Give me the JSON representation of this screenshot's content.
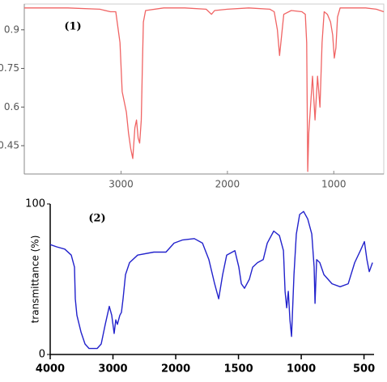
{
  "chart_data": [
    {
      "type": "line",
      "annotation": "(1)",
      "color": "#f06464",
      "x": [
        3910,
        3500,
        3200,
        3100,
        3050,
        3010,
        2990,
        2970,
        2950,
        2930,
        2910,
        2890,
        2870,
        2855,
        2840,
        2825,
        2810,
        2800,
        2790,
        2770,
        2600,
        2400,
        2200,
        2150,
        2120,
        2000,
        1800,
        1600,
        1560,
        1530,
        1510,
        1490,
        1470,
        1400,
        1300,
        1268,
        1255,
        1245,
        1235,
        1200,
        1176,
        1153,
        1130,
        1110,
        1090,
        1060,
        1030,
        1010,
        995,
        980,
        965,
        940,
        700,
        600,
        530
      ],
      "values": [
        0.985,
        0.985,
        0.98,
        0.97,
        0.97,
        0.85,
        0.66,
        0.62,
        0.58,
        0.5,
        0.44,
        0.4,
        0.52,
        0.55,
        0.48,
        0.46,
        0.55,
        0.75,
        0.93,
        0.975,
        0.985,
        0.985,
        0.98,
        0.96,
        0.975,
        0.98,
        0.985,
        0.98,
        0.97,
        0.9,
        0.8,
        0.88,
        0.96,
        0.975,
        0.97,
        0.96,
        0.85,
        0.35,
        0.5,
        0.72,
        0.55,
        0.72,
        0.6,
        0.85,
        0.97,
        0.96,
        0.93,
        0.88,
        0.79,
        0.83,
        0.95,
        0.985,
        0.985,
        0.98,
        0.97
      ],
      "xlim": [
        3910,
        530
      ],
      "ylim": [
        0.34,
        1.0
      ],
      "xticks": [
        3000,
        2000,
        1000
      ],
      "yticks": [
        0.9,
        0.75,
        0.6,
        0.45
      ]
    },
    {
      "type": "line",
      "annotation": "(2)",
      "color": "#2222cc",
      "ylabel": "transmittance (%)",
      "x": [
        4000,
        3897,
        3768,
        3665,
        3613,
        3600,
        3574,
        3510,
        3445,
        3381,
        3252,
        3187,
        3123,
        3058,
        3019,
        2994,
        2981,
        2955,
        2929,
        2890,
        2865,
        2839,
        2800,
        2736,
        2607,
        2349,
        2155,
        2026,
        1948,
        1852,
        1787,
        1736,
        1690,
        1658,
        1626,
        1594,
        1529,
        1497,
        1477,
        1452,
        1413,
        1387,
        1348,
        1303,
        1271,
        1219,
        1174,
        1142,
        1129,
        1116,
        1103,
        1090,
        1077,
        1058,
        1039,
        1013,
        981,
        948,
        916,
        897,
        890,
        877,
        852,
        819,
        755,
        690,
        626,
        574,
        529,
        497,
        477,
        458,
        432
      ],
      "values": [
        73,
        71.5,
        70,
        66,
        58,
        37,
        26,
        15,
        7,
        4,
        4,
        7,
        20,
        32,
        26,
        18,
        14,
        23,
        20,
        26,
        28,
        37,
        53,
        61,
        66,
        68,
        68,
        74,
        76,
        77,
        74,
        63,
        47,
        37,
        53,
        66,
        69,
        58,
        47,
        44,
        50,
        58,
        61,
        63,
        74,
        82,
        79,
        69,
        42,
        31,
        42,
        23,
        12,
        53,
        80,
        93,
        95,
        90,
        80,
        58,
        34,
        63,
        61,
        53,
        47,
        45,
        47,
        61,
        69,
        75,
        63,
        55,
        61
      ],
      "xlim": [
        4000,
        420
      ],
      "ylim": [
        0,
        100
      ],
      "xticks": [
        4000,
        3000,
        2000,
        1500,
        1000,
        500
      ],
      "yticks": [
        0,
        100
      ]
    }
  ]
}
